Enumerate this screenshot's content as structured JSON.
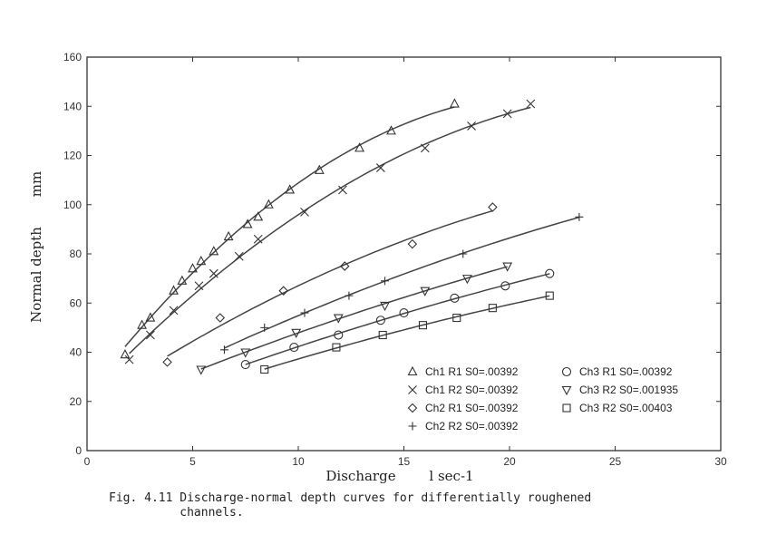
{
  "chart_data": {
    "type": "scatter",
    "xlabel": "Discharge",
    "xunit": "l sec-1",
    "ylabel": "Normal depth",
    "yunit": "mm",
    "xlim": [
      0,
      30
    ],
    "ylim": [
      0,
      160
    ],
    "xticks": [
      0,
      5,
      10,
      15,
      20,
      25,
      30
    ],
    "yticks": [
      0,
      20,
      40,
      60,
      80,
      100,
      120,
      140,
      160
    ],
    "grid": false,
    "legend_position": "bottom-right",
    "series": [
      {
        "name": "Ch1 R1 S0=.00392",
        "marker": "triangle-up",
        "points": [
          [
            1.8,
            39
          ],
          [
            2.6,
            51
          ],
          [
            3.0,
            54
          ],
          [
            4.1,
            65
          ],
          [
            4.5,
            69
          ],
          [
            5.0,
            74
          ],
          [
            5.4,
            77
          ],
          [
            6.0,
            81
          ],
          [
            6.7,
            87
          ],
          [
            7.6,
            92
          ],
          [
            8.1,
            95
          ],
          [
            8.6,
            100
          ],
          [
            9.6,
            106
          ],
          [
            11.0,
            114
          ],
          [
            12.9,
            123
          ],
          [
            14.4,
            130
          ],
          [
            17.4,
            141
          ]
        ]
      },
      {
        "name": "Ch1 R2 S0=.00392",
        "marker": "x",
        "points": [
          [
            2.0,
            37
          ],
          [
            3.0,
            47
          ],
          [
            4.1,
            57
          ],
          [
            5.3,
            67
          ],
          [
            6.0,
            72
          ],
          [
            7.2,
            79
          ],
          [
            8.1,
            86
          ],
          [
            10.3,
            97
          ],
          [
            12.1,
            106
          ],
          [
            13.9,
            115
          ],
          [
            16.0,
            123
          ],
          [
            18.2,
            132
          ],
          [
            19.9,
            137
          ],
          [
            21.0,
            141
          ]
        ]
      },
      {
        "name": "Ch2 R1 S0=.00392",
        "marker": "diamond",
        "points": [
          [
            3.8,
            36
          ],
          [
            6.3,
            54
          ],
          [
            9.3,
            65
          ],
          [
            12.2,
            75
          ],
          [
            15.4,
            84
          ],
          [
            19.2,
            99
          ]
        ]
      },
      {
        "name": "Ch2 R2 S0=.00392",
        "marker": "plus",
        "points": [
          [
            6.5,
            41
          ],
          [
            8.4,
            50
          ],
          [
            10.3,
            56
          ],
          [
            12.4,
            63
          ],
          [
            14.1,
            69
          ],
          [
            17.8,
            80
          ],
          [
            23.3,
            95
          ]
        ]
      },
      {
        "name": "Ch3 R1 S0=.00392",
        "marker": "circle",
        "points": [
          [
            7.5,
            35
          ],
          [
            9.8,
            42
          ],
          [
            11.9,
            47
          ],
          [
            13.9,
            53
          ],
          [
            15.0,
            56
          ],
          [
            17.4,
            62
          ],
          [
            19.8,
            67
          ],
          [
            21.9,
            72
          ]
        ]
      },
      {
        "name": "Ch3 R2 S0=.001935",
        "marker": "triangle-down",
        "points": [
          [
            5.4,
            33
          ],
          [
            7.5,
            40
          ],
          [
            9.9,
            48
          ],
          [
            11.9,
            54
          ],
          [
            14.1,
            59
          ],
          [
            16.0,
            65
          ],
          [
            18.0,
            70
          ],
          [
            19.9,
            75
          ]
        ]
      },
      {
        "name": "Ch3 R2 S0=.00403",
        "marker": "square",
        "points": [
          [
            8.4,
            33
          ],
          [
            11.8,
            42
          ],
          [
            14.0,
            47
          ],
          [
            15.9,
            51
          ],
          [
            17.5,
            54
          ],
          [
            19.2,
            58
          ],
          [
            21.9,
            63
          ]
        ]
      }
    ]
  },
  "caption": {
    "line1": "Fig. 4.11 Discharge-normal depth curves for differentially roughened",
    "line2": "          channels."
  }
}
